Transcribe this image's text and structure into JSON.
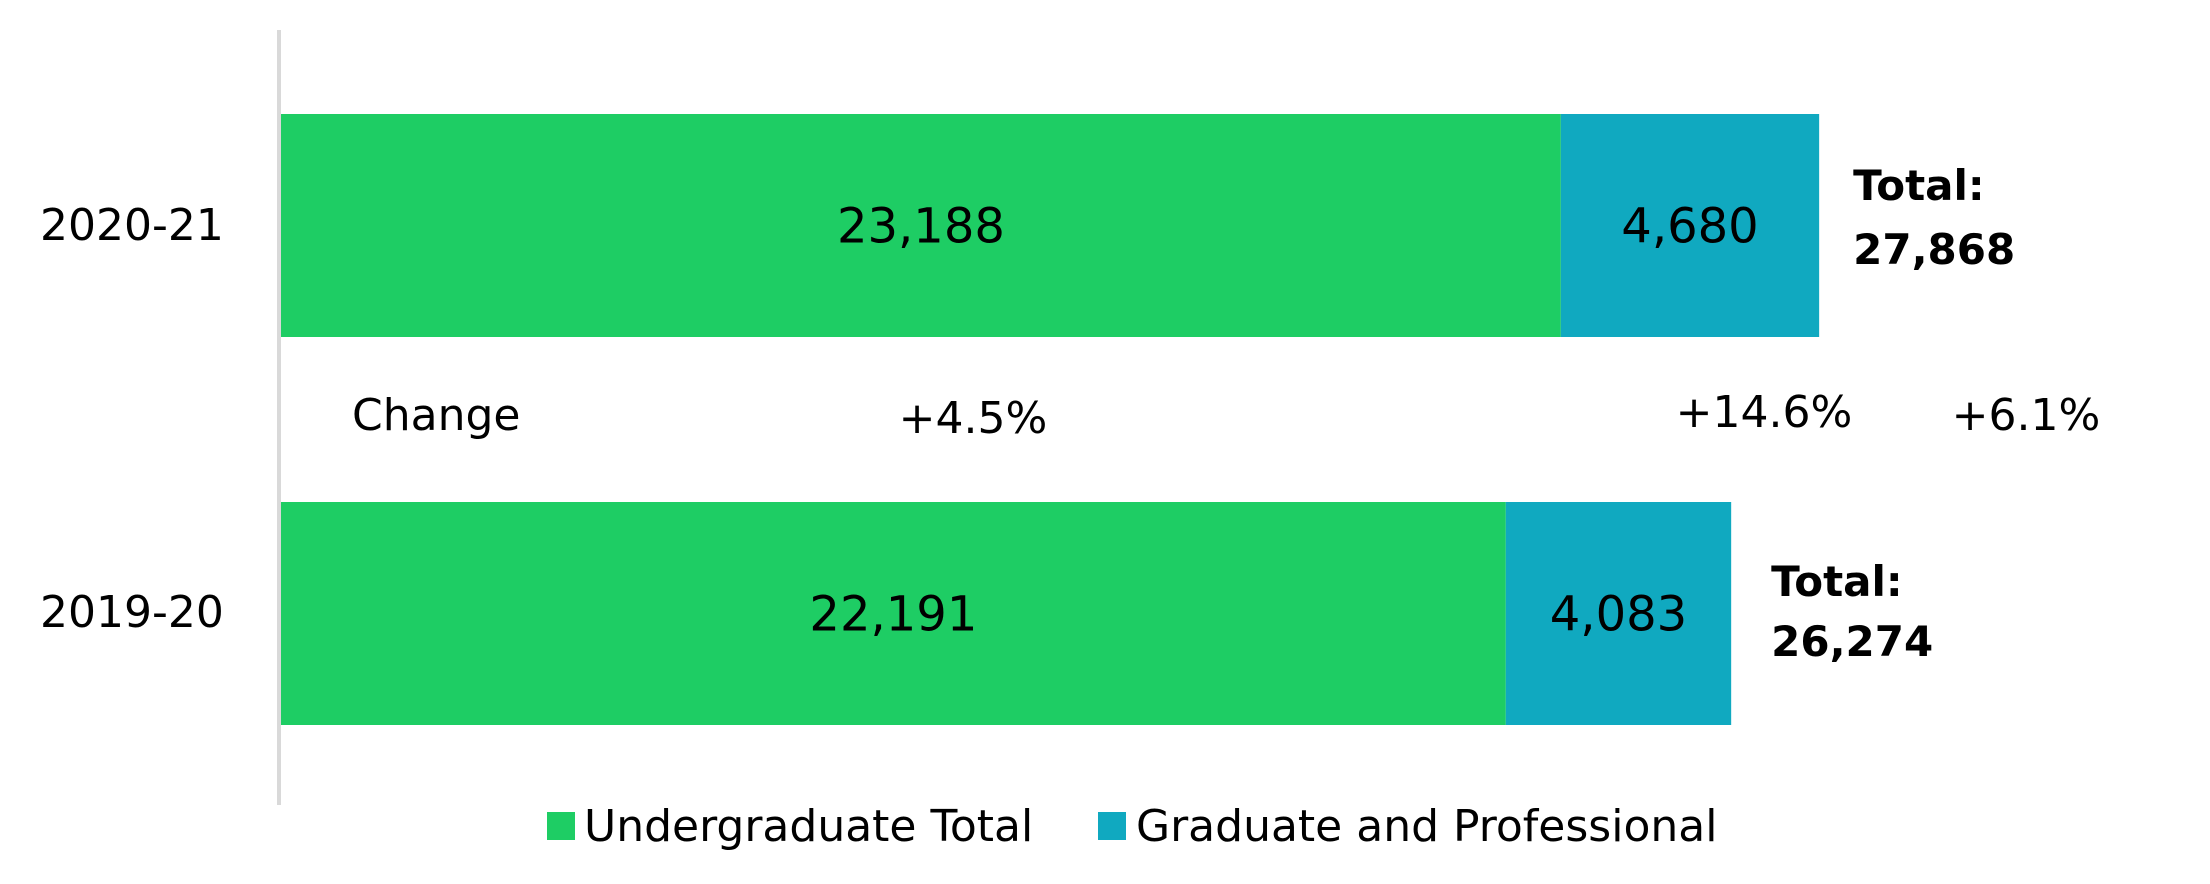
{
  "chart_data": {
    "type": "bar",
    "orientation": "horizontal",
    "stacked": true,
    "categories": [
      "2020-21",
      "2019-20"
    ],
    "series": [
      {
        "name": "Undergraduate Total",
        "values": [
          23188,
          22191
        ],
        "color": "#1ecd64"
      },
      {
        "name": "Graduate and Professional",
        "values": [
          4680,
          4083
        ],
        "color": "#10a9c0"
      }
    ],
    "data_labels": [
      [
        "23,188",
        "4,680"
      ],
      [
        "22,191",
        "4,083"
      ]
    ],
    "totals": [
      {
        "prefix": "Total:",
        "value": "27,868"
      },
      {
        "prefix": "Total:",
        "value": "26,274"
      }
    ],
    "change": {
      "label": "Change",
      "values": [
        "+4.5%",
        "+14.6%",
        "+6.1%"
      ]
    },
    "xlim": [
      0,
      33500
    ],
    "grid": false,
    "legend_position": "bottom"
  }
}
